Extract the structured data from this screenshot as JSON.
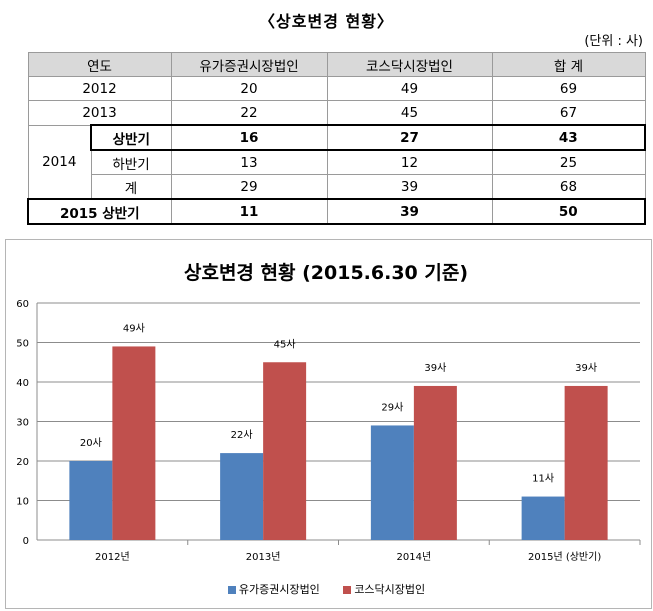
{
  "heading": "〈상호변경 현황〉",
  "unit": "(단위 : 사)",
  "table": {
    "headers": [
      "연도",
      "유가증권시장법인",
      "코스닥시장법인",
      "합  계"
    ],
    "rows": [
      {
        "year": "2012",
        "sub": "",
        "kospi": "20",
        "kosdaq": "49",
        "total": "69"
      },
      {
        "year": "2013",
        "sub": "",
        "kospi": "22",
        "kosdaq": "45",
        "total": "67"
      },
      {
        "year": "2014",
        "sub": "상반기",
        "kospi": "16",
        "kosdaq": "27",
        "total": "43"
      },
      {
        "year": "",
        "sub": "하반기",
        "kospi": "13",
        "kosdaq": "12",
        "total": "25"
      },
      {
        "year": "",
        "sub": "계",
        "kospi": "29",
        "kosdaq": "39",
        "total": "68"
      },
      {
        "year": "2015 상반기",
        "sub": "",
        "kospi": "11",
        "kosdaq": "39",
        "total": "50"
      }
    ]
  },
  "chart_data": {
    "type": "bar",
    "title": "상호변경 현황 (2015.6.30 기준)",
    "categories": [
      "2012년",
      "2013년",
      "2014년",
      "2015년 (상반기)"
    ],
    "series": [
      {
        "name": "유가증권시장법인",
        "values": [
          20,
          22,
          29,
          11
        ],
        "labels": [
          "20사",
          "22사",
          "29사",
          "11사"
        ],
        "color": "#4f81bd"
      },
      {
        "name": "코스닥시장법인",
        "values": [
          49,
          45,
          39,
          39
        ],
        "labels": [
          "49사",
          "45사",
          "39사",
          "39사"
        ],
        "color": "#c0504d"
      }
    ],
    "ylim": [
      0,
      60
    ],
    "yticks": [
      0,
      10,
      20,
      30,
      40,
      50,
      60
    ],
    "grid": true,
    "legend": "bottom"
  }
}
